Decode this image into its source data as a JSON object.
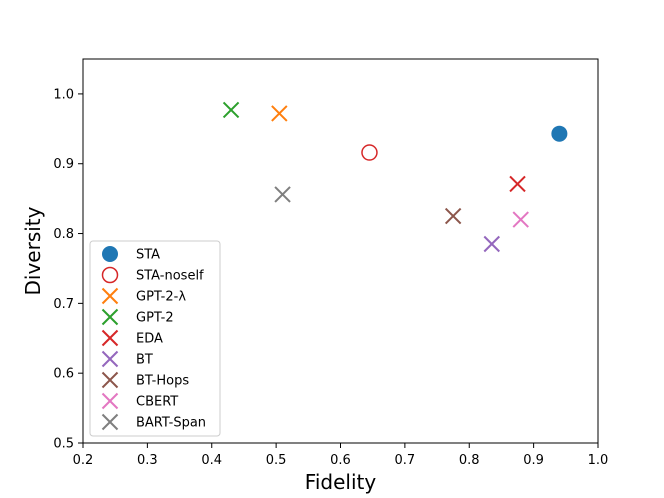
{
  "chart_data": {
    "type": "scatter",
    "title": "",
    "xlabel": "Fidelity",
    "ylabel": "Diversity",
    "xlim": [
      0.2,
      1.0
    ],
    "ylim": [
      0.5,
      1.05
    ],
    "xticks": [
      "0.2",
      "0.3",
      "0.4",
      "0.5",
      "0.6",
      "0.7",
      "0.8",
      "0.9",
      "1.0"
    ],
    "yticks": [
      "0.5",
      "0.6",
      "0.7",
      "0.8",
      "0.9",
      "1.0"
    ],
    "legend_position": "lower-left",
    "series": [
      {
        "name": "STA",
        "marker": "filled-circle",
        "color": "#1f77b4",
        "x": 0.94,
        "y": 0.943
      },
      {
        "name": "STA-noself",
        "marker": "open-circle",
        "color": "#d62728",
        "x": 0.645,
        "y": 0.916
      },
      {
        "name": "GPT-2-λ",
        "marker": "x",
        "color": "#ff7f0e",
        "x": 0.505,
        "y": 0.972
      },
      {
        "name": "GPT-2",
        "marker": "x",
        "color": "#2ca02c",
        "x": 0.43,
        "y": 0.977
      },
      {
        "name": "EDA",
        "marker": "x",
        "color": "#d62728",
        "x": 0.875,
        "y": 0.871
      },
      {
        "name": "BT",
        "marker": "x",
        "color": "#9467bd",
        "x": 0.835,
        "y": 0.785
      },
      {
        "name": "BT-Hops",
        "marker": "x",
        "color": "#8c564b",
        "x": 0.775,
        "y": 0.825
      },
      {
        "name": "CBERT",
        "marker": "x",
        "color": "#e377c2",
        "x": 0.88,
        "y": 0.82
      },
      {
        "name": "BART-Span",
        "marker": "x",
        "color": "#7f7f7f",
        "x": 0.51,
        "y": 0.856
      }
    ]
  }
}
